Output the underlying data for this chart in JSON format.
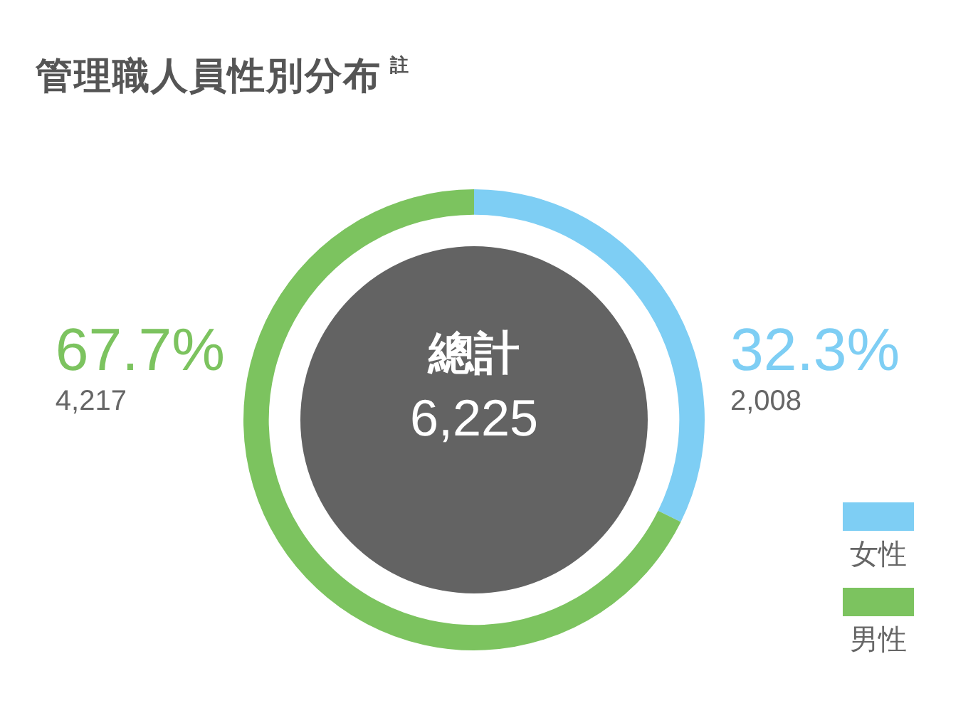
{
  "chart_data": {
    "type": "donut",
    "title": "管理職人員性別分布$^{註}$",
    "categories": [
      "女性",
      "男性"
    ],
    "values": [
      32.3,
      67.7
    ],
    "colors": [
      "#7ecef4",
      "#7cc35f"
    ],
    "value_labels": [
      "32.3%\n2,008",
      "67.7%\n4,217"
    ],
    "annotations": [
      "總計",
      "6,225"
    ],
    "legend": "bottom right"
  }
}
